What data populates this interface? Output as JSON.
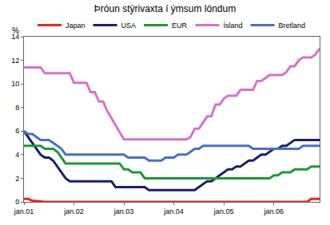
{
  "chart_data": {
    "type": "line",
    "title": "Þróun stýrivaxta í ýmsum löndum",
    "ylabel": "%",
    "categories": [
      "jan.01",
      null,
      null,
      null,
      null,
      null,
      null,
      null,
      null,
      null,
      null,
      null,
      "jan.02",
      null,
      null,
      null,
      null,
      null,
      null,
      null,
      null,
      null,
      null,
      null,
      "jan.03",
      null,
      null,
      null,
      null,
      null,
      null,
      null,
      null,
      null,
      null,
      null,
      "jan.04",
      null,
      null,
      null,
      null,
      null,
      null,
      null,
      null,
      null,
      null,
      null,
      "jan.05",
      null,
      null,
      null,
      null,
      null,
      null,
      null,
      null,
      null,
      null,
      null,
      "jan.06",
      null,
      null,
      null,
      null,
      null,
      null,
      null,
      null,
      null,
      null,
      null
    ],
    "series": [
      {
        "name": "Japan",
        "color": "#e8262a",
        "values": [
          0.25,
          0.25,
          0.1,
          0.05,
          0,
          0,
          0,
          0,
          0,
          0,
          0,
          0,
          0,
          0,
          0,
          0,
          0,
          0,
          0,
          0,
          0,
          0,
          0,
          0,
          0,
          0,
          0,
          0,
          0,
          0,
          0,
          0,
          0,
          0,
          0,
          0,
          0,
          0,
          0,
          0,
          0,
          0,
          0,
          0,
          0,
          0,
          0,
          0,
          0,
          0,
          0,
          0,
          0,
          0,
          0,
          0,
          0,
          0,
          0,
          0,
          0,
          0,
          0,
          0,
          0,
          0,
          0,
          0,
          0,
          0.25,
          0.25,
          0.25
        ]
      },
      {
        "name": "USA",
        "color": "#1b1f6e",
        "values": [
          6.0,
          5.5,
          5.0,
          4.5,
          4.0,
          3.75,
          3.75,
          3.5,
          3.0,
          2.5,
          2.0,
          1.75,
          1.75,
          1.75,
          1.75,
          1.75,
          1.75,
          1.75,
          1.75,
          1.75,
          1.75,
          1.75,
          1.25,
          1.25,
          1.25,
          1.25,
          1.25,
          1.25,
          1.25,
          1.25,
          1.0,
          1.0,
          1.0,
          1.0,
          1.0,
          1.0,
          1.0,
          1.0,
          1.0,
          1.0,
          1.0,
          1.0,
          1.25,
          1.5,
          1.75,
          1.75,
          2.0,
          2.25,
          2.5,
          2.75,
          2.75,
          3.0,
          3.0,
          3.25,
          3.5,
          3.5,
          3.75,
          4.0,
          4.0,
          4.25,
          4.5,
          4.5,
          4.75,
          4.75,
          5.0,
          5.25,
          5.25,
          5.25,
          5.25,
          5.25,
          5.25,
          5.25
        ]
      },
      {
        "name": "EUR",
        "color": "#1a9a3a",
        "values": [
          4.75,
          4.75,
          4.75,
          4.75,
          4.75,
          4.5,
          4.5,
          4.5,
          4.25,
          3.75,
          3.25,
          3.25,
          3.25,
          3.25,
          3.25,
          3.25,
          3.25,
          3.25,
          3.25,
          3.25,
          3.25,
          3.25,
          3.25,
          3.25,
          2.75,
          2.75,
          2.5,
          2.5,
          2.5,
          2.0,
          2.0,
          2.0,
          2.0,
          2.0,
          2.0,
          2.0,
          2.0,
          2.0,
          2.0,
          2.0,
          2.0,
          2.0,
          2.0,
          2.0,
          2.0,
          2.0,
          2.0,
          2.0,
          2.0,
          2.0,
          2.0,
          2.0,
          2.0,
          2.0,
          2.0,
          2.0,
          2.0,
          2.0,
          2.0,
          2.0,
          2.25,
          2.25,
          2.5,
          2.5,
          2.5,
          2.75,
          2.75,
          2.75,
          2.75,
          3.0,
          3.0,
          3.0
        ]
      },
      {
        "name": "Ísland",
        "color": "#d872c8",
        "values": [
          11.4,
          11.4,
          11.4,
          11.4,
          11.4,
          10.9,
          10.9,
          10.9,
          10.9,
          10.9,
          10.9,
          10.9,
          10.1,
          10.1,
          10.1,
          10.1,
          9.3,
          9.3,
          8.5,
          8.5,
          7.7,
          7.1,
          6.5,
          5.8,
          5.3,
          5.3,
          5.3,
          5.3,
          5.3,
          5.3,
          5.3,
          5.3,
          5.3,
          5.3,
          5.3,
          5.3,
          5.3,
          5.3,
          5.3,
          5.3,
          5.5,
          6.2,
          6.2,
          6.75,
          7.25,
          7.25,
          8.25,
          8.25,
          8.75,
          9.0,
          9.0,
          9.0,
          9.5,
          9.5,
          9.5,
          9.5,
          10.25,
          10.25,
          10.5,
          10.75,
          10.75,
          10.75,
          10.75,
          11.0,
          11.5,
          11.5,
          12.0,
          12.25,
          12.25,
          12.25,
          12.5,
          13.0
        ]
      },
      {
        "name": "Bretland",
        "color": "#4a6ecc",
        "values": [
          6.0,
          5.75,
          5.75,
          5.5,
          5.25,
          5.25,
          5.25,
          5.0,
          4.75,
          4.5,
          4.0,
          4.0,
          4.0,
          4.0,
          4.0,
          4.0,
          4.0,
          4.0,
          4.0,
          4.0,
          4.0,
          4.0,
          4.0,
          4.0,
          4.0,
          3.75,
          3.75,
          3.75,
          3.75,
          3.75,
          3.5,
          3.5,
          3.5,
          3.5,
          3.75,
          3.75,
          3.75,
          4.0,
          4.0,
          4.0,
          4.25,
          4.5,
          4.5,
          4.75,
          4.75,
          4.75,
          4.75,
          4.75,
          4.75,
          4.75,
          4.75,
          4.75,
          4.75,
          4.75,
          4.75,
          4.5,
          4.5,
          4.5,
          4.5,
          4.5,
          4.5,
          4.5,
          4.5,
          4.5,
          4.5,
          4.5,
          4.5,
          4.75,
          4.75,
          4.75,
          4.75,
          4.75
        ]
      }
    ],
    "ylim": [
      0,
      14
    ],
    "yticks": [
      0,
      2,
      4,
      6,
      8,
      10,
      12,
      14
    ],
    "grid": false,
    "legend": "top"
  }
}
